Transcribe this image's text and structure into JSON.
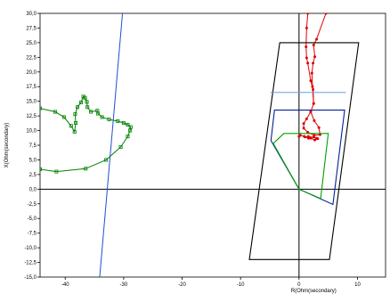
{
  "chart_data": {
    "type": "line",
    "xlabel": "R(Ohm(secondary)",
    "ylabel": "X(Ohm(secondary)",
    "xlim": [
      -44.3,
      14.8
    ],
    "ylim": [
      -15,
      30
    ],
    "xticks": [
      -40,
      -30,
      -20,
      -10,
      0,
      10
    ],
    "xtick_labels": [
      "-40",
      "-30",
      "-20",
      "-10",
      "0",
      "10"
    ],
    "yticks": [
      30,
      27.5,
      25,
      22.5,
      20,
      17.5,
      15,
      12.5,
      10,
      7.5,
      5,
      2.5,
      0,
      -2.5,
      -5,
      -7.5,
      -10,
      -12.5,
      -15
    ],
    "ytick_labels": [
      "30,0",
      "27,5",
      "25,0",
      "22,5",
      "20,0",
      "17,5",
      "15,0",
      "12,5",
      "10,0",
      "7,5",
      "5,0",
      "2,5",
      "0,0",
      "-2,5",
      "-5,0",
      "-7,5",
      "-10,0",
      "-12,5",
      "-15,0"
    ],
    "grid": false,
    "series": [
      {
        "color": "#1f4fd6",
        "kind": "line",
        "points": [
          [
            -30.2,
            30
          ],
          [
            -34.1,
            -15
          ]
        ]
      },
      {
        "color": "#008000",
        "kind": "trajectory",
        "points": [
          [
            -44.3,
            3.4
          ],
          [
            -41.5,
            3.0
          ],
          [
            -36.5,
            3.5
          ],
          [
            -33,
            5.0
          ],
          [
            -30.5,
            7.2
          ],
          [
            -29.3,
            9.0
          ],
          [
            -28.9,
            10.0
          ],
          [
            -28.8,
            10.6
          ],
          [
            -29.3,
            11.0
          ],
          [
            -30.0,
            11.3
          ],
          [
            -31.0,
            11.6
          ],
          [
            -32.5,
            11.9
          ],
          [
            -33.7,
            12.3
          ],
          [
            -34.4,
            12.9
          ],
          [
            -34.5,
            13.4
          ],
          [
            -35.6,
            13.2
          ],
          [
            -36.2,
            14.0
          ],
          [
            -36.3,
            14.9
          ],
          [
            -36.6,
            15.6
          ],
          [
            -36.9,
            15.8
          ],
          [
            -37.3,
            14.8
          ],
          [
            -37.9,
            14.0
          ],
          [
            -38.3,
            12.8
          ],
          [
            -38.2,
            11.3
          ],
          [
            -38.4,
            9.8
          ],
          [
            -39.0,
            10.8
          ],
          [
            -40.2,
            12.3
          ],
          [
            -41.7,
            13.2
          ],
          [
            -44.3,
            13.8
          ]
        ]
      },
      {
        "color": "#e00000",
        "kind": "trajectory",
        "points": [
          [
            1.5,
            30
          ],
          [
            1.3,
            27.5
          ],
          [
            1.2,
            24.3
          ],
          [
            1.3,
            22.4
          ],
          [
            1.5,
            21.5
          ],
          [
            2.0,
            18.5
          ],
          [
            2.4,
            17.0
          ],
          [
            2.5,
            14.6
          ],
          [
            2.0,
            13.2
          ],
          [
            1.3,
            12.0
          ],
          [
            0.8,
            11.2
          ],
          [
            0.8,
            10.4
          ],
          [
            1.5,
            9.7
          ],
          [
            2.6,
            9.2
          ],
          [
            3.6,
            9.3
          ],
          [
            3.4,
            10.5
          ],
          [
            2.6,
            11.7
          ],
          [
            2.0,
            13.2
          ]
        ]
      },
      {
        "color": "#e00000",
        "kind": "trajectory",
        "points": [
          [
            4.6,
            30
          ],
          [
            3.0,
            25.6
          ],
          [
            2.5,
            24.6
          ],
          [
            2.7,
            22.6
          ],
          [
            2.4,
            21.5
          ],
          [
            2.2,
            19.8
          ],
          [
            2.3,
            17.5
          ],
          [
            2.5,
            14.6
          ]
        ]
      },
      {
        "color": "#e00000",
        "kind": "trajectory",
        "points": [
          [
            0.0,
            9.0
          ],
          [
            0.2,
            9.2
          ],
          [
            0.9,
            9.0
          ],
          [
            1.6,
            8.7
          ],
          [
            2.0,
            8.8
          ],
          [
            2.5,
            8.9
          ],
          [
            3.0,
            8.7
          ],
          [
            3.2,
            8.6
          ],
          [
            2.7,
            8.4
          ],
          [
            2.0,
            8.7
          ],
          [
            1.6,
            9.0
          ],
          [
            1.0,
            8.9
          ]
        ]
      },
      {
        "color": "#000000",
        "kind": "polygon",
        "points": [
          [
            -3.3,
            25
          ],
          [
            10.2,
            25
          ],
          [
            5.2,
            -12
          ],
          [
            -8.5,
            -12
          ]
        ]
      },
      {
        "color": "#5aa6e6",
        "kind": "line",
        "points": [
          [
            -4.9,
            16.5
          ],
          [
            8.0,
            16.5
          ]
        ]
      },
      {
        "color": "#00209a",
        "kind": "polygon",
        "points": [
          [
            0,
            0
          ],
          [
            -4.8,
            8.3
          ],
          [
            -4.2,
            13.5
          ],
          [
            7.8,
            13.5
          ],
          [
            5.8,
            -2.6
          ]
        ]
      },
      {
        "color": "#00a000",
        "kind": "polygon",
        "points": [
          [
            0,
            0
          ],
          [
            -4.4,
            7.8
          ],
          [
            -2.6,
            9.5
          ],
          [
            5.0,
            9.5
          ],
          [
            3.7,
            -1.6
          ]
        ]
      }
    ]
  }
}
